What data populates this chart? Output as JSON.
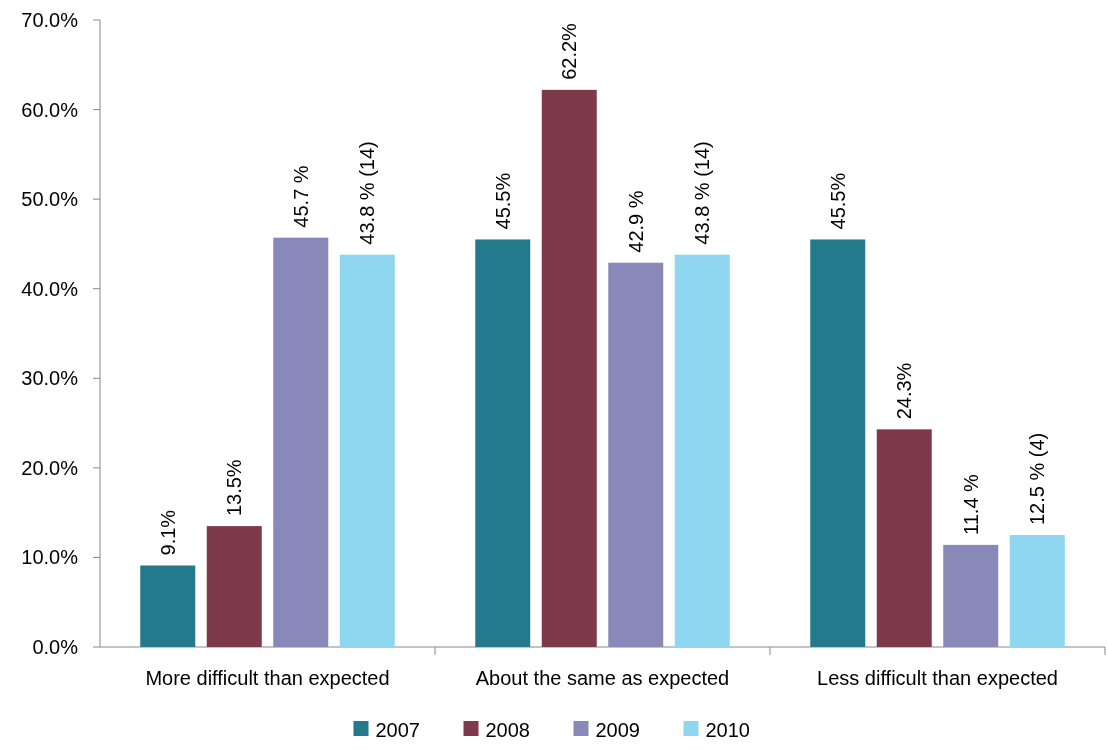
{
  "chart_data": {
    "type": "bar",
    "categories": [
      "More difficult than expected",
      "About the same as expected",
      "Less difficult than expected"
    ],
    "series": [
      {
        "name": "2007",
        "color": "#237a8c",
        "values": [
          9.1,
          45.5,
          45.5
        ],
        "value_labels": [
          "9.1%",
          "45.5%",
          "45.5%"
        ]
      },
      {
        "name": "2008",
        "color": "#7e3a4a",
        "values": [
          13.5,
          62.2,
          24.3
        ],
        "value_labels": [
          "13.5%",
          "62.2%",
          "24.3%"
        ]
      },
      {
        "name": "2009",
        "color": "#8889b8",
        "values": [
          45.7,
          42.9,
          11.4
        ],
        "value_labels": [
          "45.7 %",
          "42.9 %",
          "11.4 %"
        ]
      },
      {
        "name": "2010",
        "color": "#8fd6f0",
        "values": [
          43.8,
          43.8,
          12.5
        ],
        "value_labels": [
          "43.8 % (14)",
          "43.8 % (14)",
          "12.5 % (4)"
        ]
      }
    ],
    "ylim": [
      0,
      70
    ],
    "yticks": [
      {
        "value": 0,
        "label": "0.0%"
      },
      {
        "value": 10,
        "label": "10.0%"
      },
      {
        "value": 20,
        "label": "20.0%"
      },
      {
        "value": 30,
        "label": "30.0%"
      },
      {
        "value": 40,
        "label": "40.0%"
      },
      {
        "value": 50,
        "label": "50.0%"
      },
      {
        "value": 60,
        "label": "60.0%"
      },
      {
        "value": 70,
        "label": "70.0%"
      }
    ],
    "grid": false,
    "legend": "bottom"
  }
}
